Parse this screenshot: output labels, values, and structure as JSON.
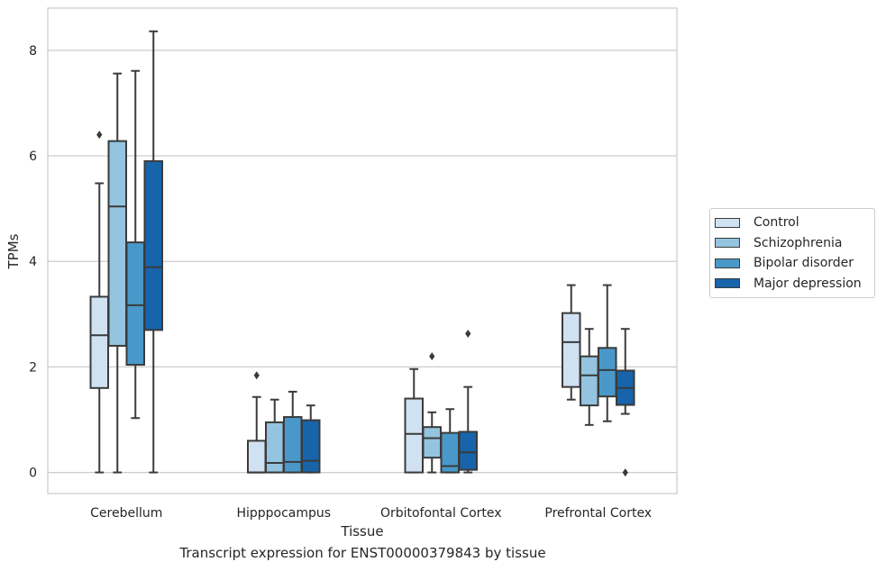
{
  "caption": "Transcript expression for ENST00000379843 by tissue",
  "chart_data": {
    "type": "box",
    "title": "",
    "xlabel": "Tissue",
    "ylabel": "TPMs",
    "ylim": [
      -0.4,
      8.8
    ],
    "yticks": [
      0,
      2,
      4,
      6,
      8
    ],
    "grid": "horizontal",
    "legend_position": "right",
    "categories": [
      "Cerebellum",
      "Hipppocampus",
      "Orbitofontal Cortex",
      "Prefrontal Cortex"
    ],
    "series": [
      {
        "name": "Control",
        "color": "#d0e1f2",
        "boxes": [
          {
            "whisker_low": 0.0,
            "q1": 1.6,
            "median": 2.6,
            "q3": 3.33,
            "whisker_high": 5.48,
            "outliers": [
              6.4
            ]
          },
          {
            "whisker_low": 0.0,
            "q1": 0.0,
            "median": 0.0,
            "q3": 0.6,
            "whisker_high": 1.43,
            "outliers": [
              1.84
            ]
          },
          {
            "whisker_low": 0.0,
            "q1": 0.0,
            "median": 0.73,
            "q3": 1.4,
            "whisker_high": 1.96,
            "outliers": []
          },
          {
            "whisker_low": 1.38,
            "q1": 1.62,
            "median": 2.47,
            "q3": 3.02,
            "whisker_high": 3.55,
            "outliers": []
          }
        ]
      },
      {
        "name": "Schizophrenia",
        "color": "#94c4df",
        "boxes": [
          {
            "whisker_low": 0.0,
            "q1": 2.4,
            "median": 5.04,
            "q3": 6.28,
            "whisker_high": 7.56,
            "outliers": []
          },
          {
            "whisker_low": 0.0,
            "q1": 0.0,
            "median": 0.18,
            "q3": 0.95,
            "whisker_high": 1.38,
            "outliers": []
          },
          {
            "whisker_low": 0.0,
            "q1": 0.28,
            "median": 0.65,
            "q3": 0.86,
            "whisker_high": 1.14,
            "outliers": [
              2.2
            ]
          },
          {
            "whisker_low": 0.9,
            "q1": 1.27,
            "median": 1.84,
            "q3": 2.2,
            "whisker_high": 2.72,
            "outliers": []
          }
        ]
      },
      {
        "name": "Bipolar disorder",
        "color": "#4a98c9",
        "boxes": [
          {
            "whisker_low": 1.03,
            "q1": 2.04,
            "median": 3.17,
            "q3": 4.36,
            "whisker_high": 7.61,
            "outliers": []
          },
          {
            "whisker_low": 0.0,
            "q1": 0.0,
            "median": 0.2,
            "q3": 1.05,
            "whisker_high": 1.53,
            "outliers": []
          },
          {
            "whisker_low": 0.0,
            "q1": 0.0,
            "median": 0.12,
            "q3": 0.75,
            "whisker_high": 1.2,
            "outliers": []
          },
          {
            "whisker_low": 0.97,
            "q1": 1.44,
            "median": 1.94,
            "q3": 2.36,
            "whisker_high": 3.55,
            "outliers": []
          }
        ]
      },
      {
        "name": "Major depression",
        "color": "#1764ab",
        "boxes": [
          {
            "whisker_low": 0.0,
            "q1": 2.7,
            "median": 3.89,
            "q3": 5.9,
            "whisker_high": 8.36,
            "outliers": []
          },
          {
            "whisker_low": 0.0,
            "q1": 0.0,
            "median": 0.22,
            "q3": 0.99,
            "whisker_high": 1.27,
            "outliers": []
          },
          {
            "whisker_low": 0.0,
            "q1": 0.05,
            "median": 0.38,
            "q3": 0.77,
            "whisker_high": 1.62,
            "outliers": [
              2.63
            ]
          },
          {
            "whisker_low": 1.11,
            "q1": 1.28,
            "median": 1.6,
            "q3": 1.93,
            "whisker_high": 2.72,
            "outliers": [
              0.0
            ]
          }
        ]
      }
    ]
  }
}
